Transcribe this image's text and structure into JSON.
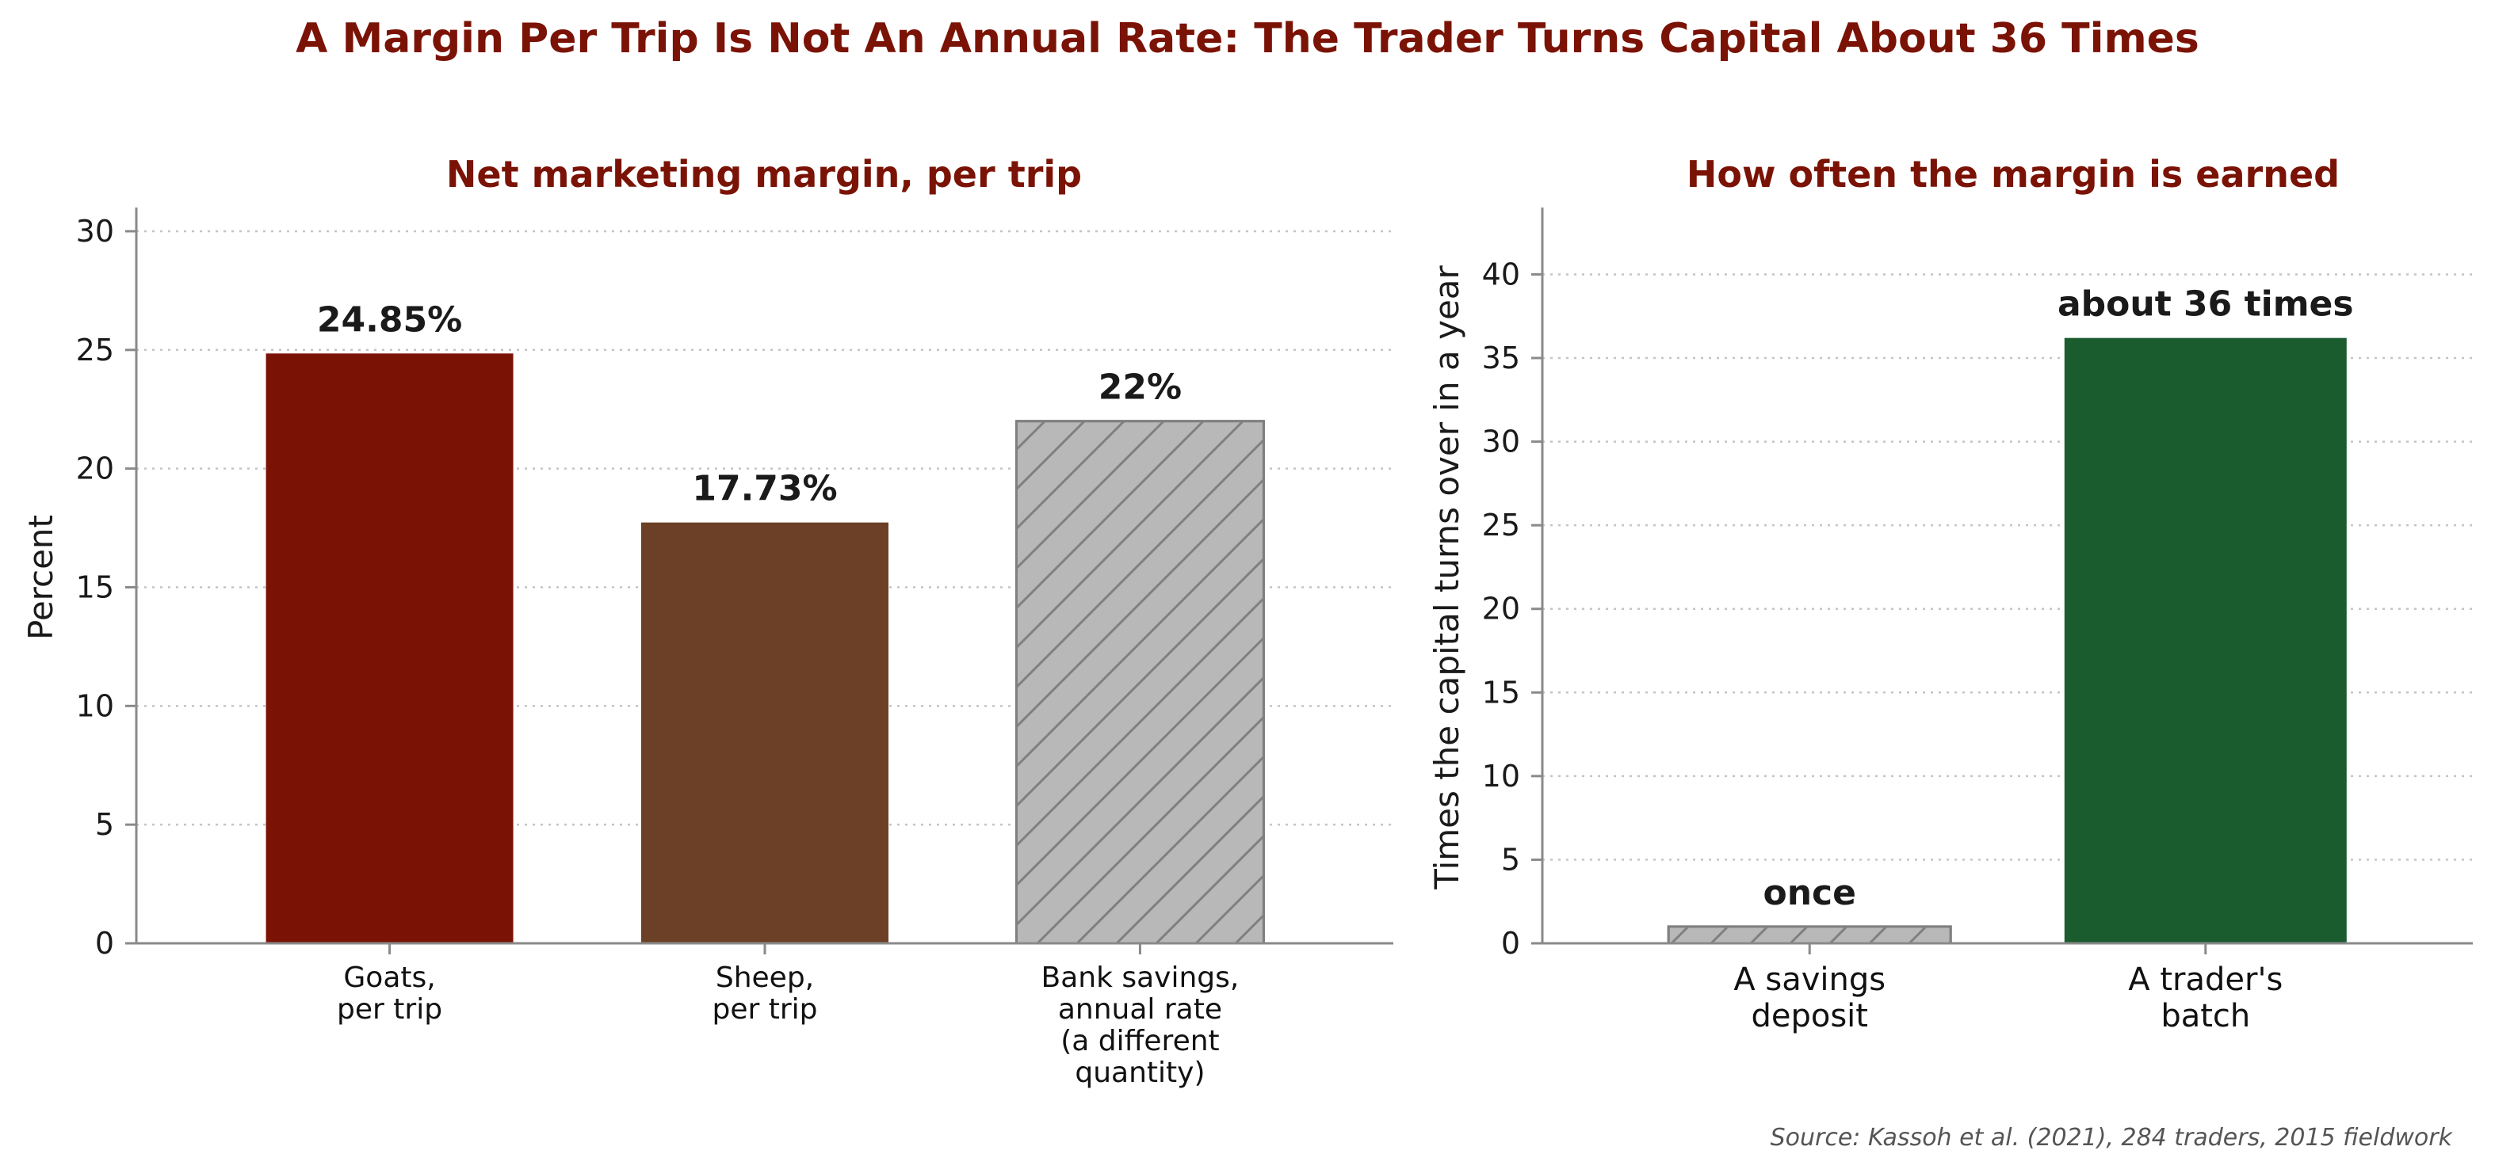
{
  "figure": {
    "title": "A Margin Per Trip Is Not An Annual Rate: The Trader Turns Capital About 36 Times",
    "source": "Source: Kassoh et al. (2021), 284 traders, 2015 fieldwork"
  },
  "chart_data": [
    {
      "type": "bar",
      "title": "Net marketing margin, per trip",
      "xlabel": "",
      "ylabel": "Percent",
      "ylim": [
        0,
        31
      ],
      "yticks": [
        0,
        5,
        10,
        15,
        20,
        25,
        30
      ],
      "grid": "y, dotted",
      "categories": [
        [
          "Goats,",
          "per trip"
        ],
        [
          "Sheep,",
          "per trip"
        ],
        [
          "Bank savings,",
          "annual rate",
          "(a different",
          "quantity)"
        ]
      ],
      "values": [
        24.85,
        17.73,
        22
      ],
      "data_labels": [
        "24.85%",
        "17.73%",
        "22%"
      ],
      "colors": [
        "#7a1306",
        "#6b4026",
        "#b8b8b8"
      ],
      "hatched": [
        false,
        false,
        true
      ]
    },
    {
      "type": "bar",
      "title": "How often the margin is earned",
      "xlabel": "",
      "ylabel": "Times the capital turns over in a year",
      "ylim": [
        0,
        44
      ],
      "yticks": [
        0,
        5,
        10,
        15,
        20,
        25,
        30,
        35,
        40
      ],
      "grid": "y, dotted",
      "categories": [
        [
          "A savings",
          "deposit"
        ],
        [
          "A trader's",
          "batch"
        ]
      ],
      "values": [
        1,
        36.2
      ],
      "data_labels": [
        "once",
        "about 36 times"
      ],
      "colors": [
        "#b8b8b8",
        "#1a5c2e"
      ],
      "hatched": [
        true,
        false
      ]
    }
  ]
}
